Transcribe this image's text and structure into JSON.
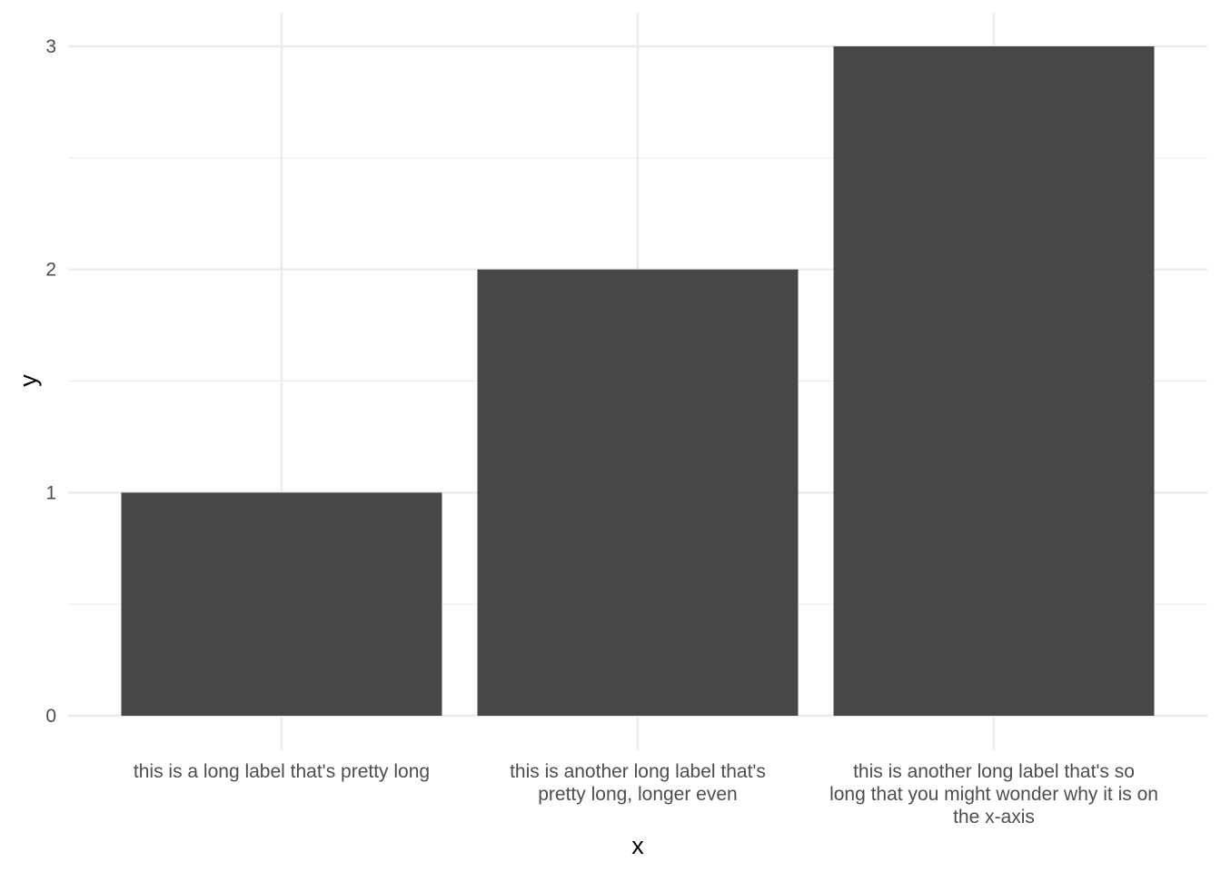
{
  "chart_data": {
    "type": "bar",
    "categories": [
      "this is a long label that's pretty long",
      "this is another long label that's pretty long, longer even",
      "this is another long label that's so long that you might wonder why it is on the x-axis"
    ],
    "category_lines": [
      [
        "this is a long label that's pretty long"
      ],
      [
        "this is another long label that's",
        "pretty long, longer even"
      ],
      [
        "this is another long label that's so",
        "long that you might wonder why it is on",
        "the x-axis"
      ]
    ],
    "values": [
      1,
      2,
      3
    ],
    "xlabel": "x",
    "ylabel": "y",
    "ylim": [
      0,
      3
    ],
    "yticks": [
      0,
      1,
      2,
      3
    ],
    "grid": true,
    "bar_color": "#474747",
    "grid_color": "#ebebeb"
  }
}
